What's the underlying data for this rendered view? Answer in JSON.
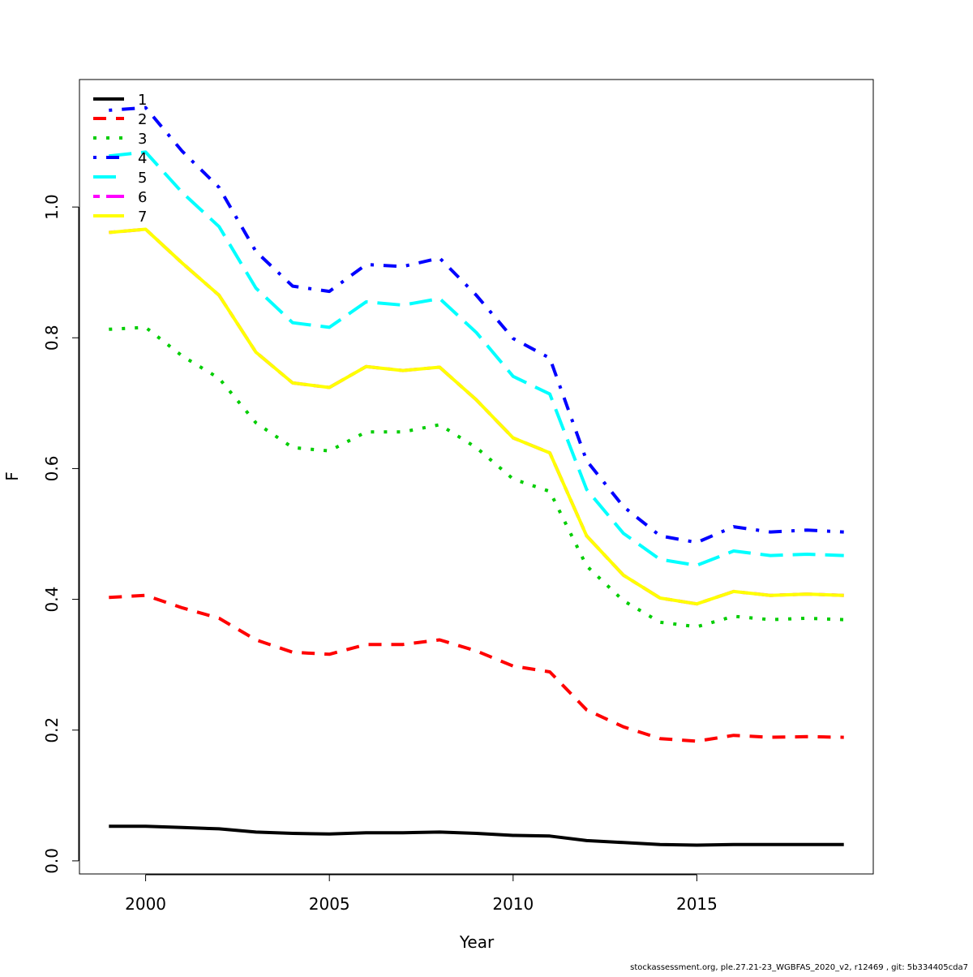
{
  "chart_data": {
    "type": "line",
    "xlabel": "Year",
    "ylabel": "F",
    "xlim": [
      1998.2,
      2019.8
    ],
    "ylim": [
      -0.02,
      1.195
    ],
    "xticks": [
      2000,
      2005,
      2010,
      2015
    ],
    "yticks": [
      0.0,
      0.2,
      0.4,
      0.6,
      0.8,
      1.0
    ],
    "ytick_labels": [
      "0.0",
      "0.2",
      "0.4",
      "0.6",
      "0.8",
      "1.0"
    ],
    "legend_position": "top-left",
    "x": [
      1999,
      2000,
      2001,
      2002,
      2003,
      2004,
      2005,
      2006,
      2007,
      2008,
      2009,
      2010,
      2011,
      2012,
      2013,
      2014,
      2015,
      2016,
      2017,
      2018,
      2019
    ],
    "series": [
      {
        "name": "1",
        "color": "#000000",
        "dash": "solid",
        "values": [
          0.053,
          0.053,
          0.051,
          0.049,
          0.044,
          0.042,
          0.041,
          0.043,
          0.043,
          0.044,
          0.042,
          0.039,
          0.038,
          0.031,
          0.028,
          0.025,
          0.024,
          0.025,
          0.025,
          0.025,
          0.025
        ]
      },
      {
        "name": "2",
        "color": "#ff0000",
        "dash": "dashed",
        "values": [
          0.403,
          0.406,
          0.387,
          0.371,
          0.338,
          0.319,
          0.316,
          0.331,
          0.331,
          0.338,
          0.321,
          0.298,
          0.289,
          0.231,
          0.205,
          0.187,
          0.183,
          0.192,
          0.189,
          0.19,
          0.189
        ]
      },
      {
        "name": "3",
        "color": "#00cd00",
        "dash": "dotted",
        "values": [
          0.813,
          0.816,
          0.772,
          0.738,
          0.67,
          0.632,
          0.627,
          0.656,
          0.656,
          0.667,
          0.632,
          0.584,
          0.565,
          0.451,
          0.398,
          0.365,
          0.358,
          0.374,
          0.369,
          0.371,
          0.369
        ]
      },
      {
        "name": "4",
        "color": "#0000ff",
        "dash": "dotdash",
        "values": [
          1.148,
          1.152,
          1.085,
          1.03,
          0.932,
          0.879,
          0.871,
          0.912,
          0.909,
          0.922,
          0.865,
          0.799,
          0.769,
          0.612,
          0.542,
          0.497,
          0.487,
          0.511,
          0.503,
          0.506,
          0.503
        ]
      },
      {
        "name": "5",
        "color": "#00ffff",
        "dash": "longdash",
        "values": [
          1.078,
          1.084,
          1.022,
          0.97,
          0.876,
          0.823,
          0.816,
          0.855,
          0.85,
          0.86,
          0.808,
          0.741,
          0.714,
          0.568,
          0.501,
          0.461,
          0.452,
          0.474,
          0.467,
          0.469,
          0.467
        ]
      },
      {
        "name": "6",
        "color": "#ff00ff",
        "dash": "twodash",
        "values": [
          0.961,
          0.966,
          0.914,
          0.865,
          0.778,
          0.731,
          0.724,
          0.756,
          0.75,
          0.755,
          0.705,
          0.647,
          0.624,
          0.497,
          0.437,
          0.402,
          0.393,
          0.412,
          0.406,
          0.408,
          0.406
        ]
      },
      {
        "name": "7",
        "color": "#ffff00",
        "dash": "solid",
        "values": [
          0.961,
          0.966,
          0.914,
          0.865,
          0.778,
          0.731,
          0.724,
          0.756,
          0.75,
          0.755,
          0.705,
          0.647,
          0.624,
          0.497,
          0.437,
          0.402,
          0.393,
          0.412,
          0.406,
          0.408,
          0.406
        ]
      }
    ]
  },
  "footer": {
    "note": "stockassessment.org, ple.27.21-23_WGBFAS_2020_v2, r12469 , git: 5b334405cda7"
  }
}
